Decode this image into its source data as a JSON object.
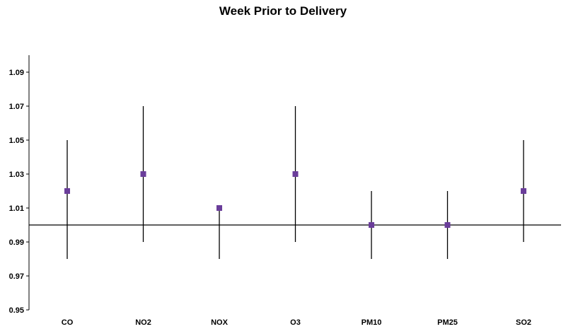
{
  "chart_data": {
    "type": "scatter",
    "title": "Week Prior to Delivery",
    "xlabel": "",
    "ylabel": "",
    "categories": [
      "CO",
      "NO2",
      "NOX",
      "O3",
      "PM10",
      "PM25",
      "SO2"
    ],
    "series": [
      {
        "values": [
          1.02,
          1.03,
          1.01,
          1.03,
          1.0,
          1.0,
          1.02
        ],
        "lower": [
          0.98,
          0.99,
          0.98,
          0.99,
          0.98,
          0.98,
          0.99
        ],
        "upper": [
          1.05,
          1.07,
          1.01,
          1.07,
          1.02,
          1.02,
          1.05
        ]
      }
    ],
    "reference_line": 1.0,
    "ylim": [
      0.95,
      1.1
    ],
    "yticks": [
      "0.95",
      "0.97",
      "0.99",
      "1.01",
      "1.03",
      "1.05",
      "1.07",
      "1.09"
    ],
    "marker_color": "#6a3d9a",
    "errorbar_color": "#000000",
    "grid": false,
    "legend": "none"
  }
}
